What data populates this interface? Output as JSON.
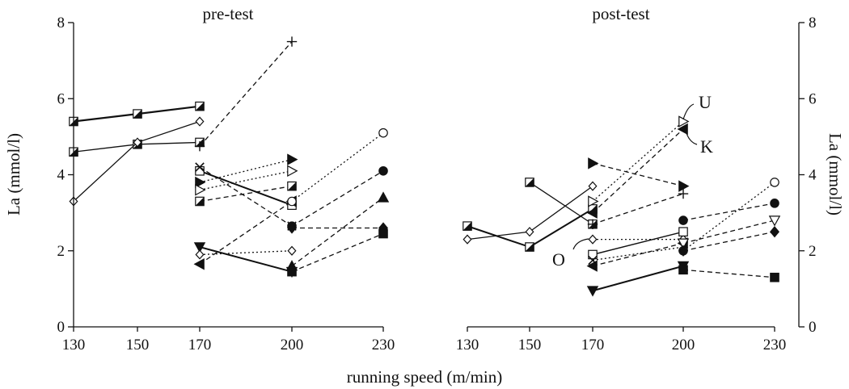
{
  "chart_data": {
    "type": "line",
    "xlabel": "running speed (m/min)",
    "ylabel_left": "La (mmol/l)",
    "ylabel_right": "La (mmol/l)",
    "ylim": [
      0,
      8
    ],
    "yticks": [
      0,
      2,
      4,
      6,
      8
    ],
    "xticks": [
      130,
      150,
      170,
      200,
      230
    ],
    "grid": false,
    "legend": "none",
    "panels": [
      {
        "title": "pre-test",
        "series": [
          {
            "values": [
              [
                130,
                5.4
              ],
              [
                150,
                5.6
              ],
              [
                170,
                5.8
              ]
            ],
            "line": "solid",
            "marker": "square-half",
            "width": 2.2
          },
          {
            "values": [
              [
                130,
                4.6
              ],
              [
                150,
                4.8
              ],
              [
                170,
                4.85
              ]
            ],
            "line": "solid",
            "marker": "square-half",
            "width": 1.3
          },
          {
            "values": [
              [
                130,
                3.3
              ],
              [
                150,
                4.85
              ],
              [
                170,
                5.4
              ]
            ],
            "line": "solid",
            "marker": "diamond-open",
            "width": 1.3
          },
          {
            "values": [
              [
                170,
                4.75
              ],
              [
                200,
                7.5
              ]
            ],
            "line": "dashed",
            "marker": "plus",
            "width": 1.3
          },
          {
            "values": [
              [
                170,
                4.1
              ],
              [
                200,
                3.2
              ]
            ],
            "line": "solid",
            "marker": "square-open",
            "width": 2
          },
          {
            "values": [
              [
                170,
                3.8
              ],
              [
                200,
                4.4
              ]
            ],
            "line": "dotted",
            "marker": "tri-right",
            "width": 1.3
          },
          {
            "values": [
              [
                170,
                3.6
              ],
              [
                200,
                4.1
              ]
            ],
            "line": "dotted",
            "marker": "tri-right-open",
            "width": 1.3
          },
          {
            "values": [
              [
                170,
                3.3
              ],
              [
                200,
                3.7
              ]
            ],
            "line": "dashed",
            "marker": "square-half",
            "width": 1.3
          },
          {
            "values": [
              [
                170,
                4.2
              ],
              [
                200,
                2.65
              ]
            ],
            "line": "dashed",
            "marker": "x",
            "width": 1.3
          },
          {
            "values": [
              [
                170,
                2.1
              ],
              [
                200,
                1.45
              ]
            ],
            "line": "solid",
            "marker": "tri-down",
            "width": 2
          },
          {
            "values": [
              [
                170,
                1.9
              ],
              [
                200,
                2.0
              ]
            ],
            "line": "dotted",
            "marker": "diamond-open",
            "width": 1.3
          },
          {
            "values": [
              [
                170,
                1.65
              ],
              [
                200,
                3.3
              ]
            ],
            "line": "dashed",
            "marker": "tri-left",
            "width": 1.3
          },
          {
            "values": [
              [
                200,
                3.3
              ],
              [
                230,
                5.1
              ]
            ],
            "line": "dotted",
            "marker": "circle-open",
            "width": 1.3
          },
          {
            "values": [
              [
                200,
                2.65
              ],
              [
                230,
                4.1
              ]
            ],
            "line": "dashed",
            "marker": "circle",
            "width": 1.3
          },
          {
            "values": [
              [
                200,
                2.6
              ],
              [
                230,
                2.6
              ]
            ],
            "line": "dashed",
            "marker": "diamond",
            "width": 1.3
          },
          {
            "values": [
              [
                200,
                1.6
              ],
              [
                230,
                3.4
              ]
            ],
            "line": "dashed",
            "marker": "triangle",
            "width": 1.3
          },
          {
            "values": [
              [
                200,
                1.45
              ],
              [
                230,
                2.45
              ]
            ],
            "line": "dashed",
            "marker": "square",
            "width": 1.3
          }
        ]
      },
      {
        "title": "post-test",
        "series": [
          {
            "values": [
              [
                130,
                2.65
              ],
              [
                150,
                2.1
              ],
              [
                170,
                3.1
              ]
            ],
            "line": "solid",
            "marker": "square-half",
            "width": 2
          },
          {
            "values": [
              [
                130,
                2.3
              ],
              [
                150,
                2.5
              ],
              [
                170,
                3.7
              ]
            ],
            "line": "solid",
            "marker": "diamond-open",
            "width": 1.3
          },
          {
            "values": [
              [
                150,
                3.8
              ],
              [
                170,
                2.7
              ]
            ],
            "line": "solid",
            "marker": "square-half",
            "width": 1.3
          },
          {
            "values": [
              [
                170,
                3.3
              ],
              [
                200,
                5.4
              ]
            ],
            "line": "dotted",
            "marker": "tri-right-open",
            "width": 1.3
          },
          {
            "values": [
              [
                170,
                3.0
              ],
              [
                200,
                5.2
              ]
            ],
            "line": "dashed",
            "marker": "tri-left",
            "width": 1.3
          },
          {
            "values": [
              [
                170,
                4.3
              ],
              [
                200,
                3.7
              ]
            ],
            "line": "dashed",
            "marker": "tri-right",
            "width": 1.3
          },
          {
            "values": [
              [
                170,
                2.7
              ],
              [
                200,
                3.5
              ]
            ],
            "line": "dashed",
            "marker": "plus",
            "width": 1.3
          },
          {
            "values": [
              [
                170,
                2.3
              ],
              [
                200,
                2.3
              ]
            ],
            "line": "dotted",
            "marker": "diamond-open",
            "width": 1.3
          },
          {
            "values": [
              [
                170,
                1.9
              ],
              [
                200,
                2.5
              ]
            ],
            "line": "solid",
            "marker": "square-open",
            "width": 1.5
          },
          {
            "values": [
              [
                170,
                1.75
              ],
              [
                200,
                2.1
              ]
            ],
            "line": "dotted",
            "marker": "x",
            "width": 1.3
          },
          {
            "values": [
              [
                170,
                1.6
              ],
              [
                200,
                2.2
              ]
            ],
            "line": "dashed",
            "marker": "tri-left",
            "width": 1.3
          },
          {
            "values": [
              [
                170,
                0.95
              ],
              [
                200,
                1.6
              ]
            ],
            "line": "solid",
            "marker": "tri-down",
            "width": 2
          },
          {
            "values": [
              [
                200,
                2.0
              ],
              [
                230,
                3.8
              ]
            ],
            "line": "dotted",
            "marker": "circle-open",
            "width": 1.3
          },
          {
            "values": [
              [
                200,
                2.8
              ],
              [
                230,
                3.25
              ]
            ],
            "line": "dashed",
            "marker": "circle",
            "width": 1.3
          },
          {
            "values": [
              [
                200,
                2.2
              ],
              [
                230,
                2.8
              ]
            ],
            "line": "dashed",
            "marker": "tri-down-open",
            "width": 1.3
          },
          {
            "values": [
              [
                200,
                2.0
              ],
              [
                230,
                2.5
              ]
            ],
            "line": "dashed",
            "marker": "diamond",
            "width": 1.3
          },
          {
            "values": [
              [
                200,
                1.5
              ],
              [
                230,
                1.3
              ]
            ],
            "line": "dashed",
            "marker": "square",
            "width": 1.3
          }
        ],
        "annotations": [
          {
            "text": "U",
            "x": 200,
            "y": 5.4
          },
          {
            "text": "K",
            "x": 200,
            "y": 5.2
          },
          {
            "text": "O",
            "x": 170,
            "y": 2.3
          }
        ]
      }
    ]
  }
}
